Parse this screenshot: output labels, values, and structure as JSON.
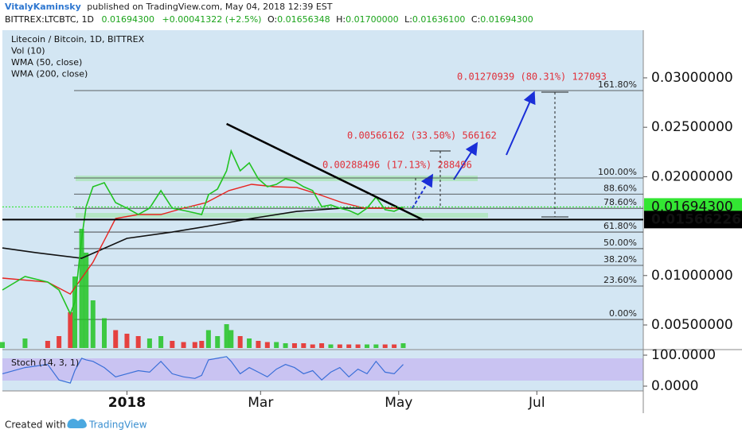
{
  "header": {
    "author": "VitalyKaminsky",
    "published": "published on TradingView.com, May 04, 2018 12:39 EST",
    "symbol": "BITTREX:LTCBTC, 1D",
    "last": "0.01694300",
    "change": "+0.00041322 (+2.5%)",
    "o_label": "O:",
    "open": "0.01656348",
    "h_label": "H:",
    "high": "0.01700000",
    "l_label": "L:",
    "low": "0.01636100",
    "c_label": "C:",
    "close": "0.01694300"
  },
  "chart_data": {
    "type": "line",
    "legend": [
      "Litecoin / Bitcoin, 1D, BITTREX",
      "Vol (10)",
      "WMA (50, close)",
      "WMA (200, close)"
    ],
    "x": [
      -55,
      -45,
      -35,
      -30,
      -25,
      -23,
      -20,
      -18,
      -15,
      -10,
      -5,
      0,
      5,
      10,
      15,
      20,
      25,
      30,
      33,
      36,
      40,
      44,
      46,
      50,
      54,
      58,
      62,
      66,
      70,
      74,
      78,
      82,
      86,
      90,
      94,
      98,
      102,
      106,
      110,
      114,
      118,
      122
    ],
    "series": [
      {
        "name": "Litecoin / Bitcoin, 1D, BITTREX",
        "color": "#22c322",
        "values": [
          0.00854,
          0.0099,
          0.00934,
          0.00854,
          0.00613,
          0.00733,
          0.01376,
          0.01698,
          0.01899,
          0.01939,
          0.01738,
          0.01682,
          0.01617,
          0.01682,
          0.01859,
          0.01682,
          0.01658,
          0.01633,
          0.01617,
          0.01818,
          0.01875,
          0.02059,
          0.0226,
          0.02059,
          0.0214,
          0.01979,
          0.01899,
          0.01923,
          0.01979,
          0.01955,
          0.01899,
          0.01859,
          0.01698,
          0.01714,
          0.01682,
          0.01658,
          0.01617,
          0.01682,
          0.01794,
          0.01666,
          0.0165,
          0.01694
        ]
      }
    ],
    "wma50": {
      "name": "WMA (50, close)",
      "color": "#e8231f",
      "x": [
        -55,
        -35,
        -25,
        -15,
        -5,
        5,
        15,
        25,
        35,
        45,
        55,
        65,
        75,
        85,
        95,
        105,
        115,
        122
      ],
      "values": [
        0.00974,
        0.00934,
        0.00813,
        0.01135,
        0.01577,
        0.01617,
        0.01617,
        0.01682,
        0.01738,
        0.01859,
        0.01923,
        0.01899,
        0.01891,
        0.01818,
        0.01738,
        0.01682,
        0.01682,
        0.01682
      ]
    },
    "wma200": {
      "name": "WMA (200, close)",
      "color": "#111111",
      "x": [
        -55,
        -40,
        -20,
        0,
        20,
        35,
        55,
        75,
        95,
        122
      ],
      "values": [
        0.01279,
        0.01231,
        0.01175,
        0.01376,
        0.0144,
        0.01497,
        0.01577,
        0.01649,
        0.01682,
        0.01682
      ]
    },
    "volume": {
      "name": "Vol (10)",
      "color": "#22c322",
      "vlim": [
        0,
        100
      ],
      "values": [
        5,
        8,
        6,
        10,
        30,
        60,
        100,
        80,
        40,
        25,
        15,
        12,
        10,
        8,
        10,
        6,
        5,
        5,
        6,
        15,
        10,
        20,
        15,
        10,
        8,
        6,
        5,
        5,
        4,
        4,
        4,
        3,
        4,
        3,
        3,
        3,
        3,
        3,
        3,
        3,
        3,
        4
      ]
    },
    "trendline": {
      "x": [
        44,
        131
      ],
      "values": [
        0.02534,
        0.01561
      ],
      "color": "#000000"
    },
    "fib": [
      {
        "label": "161.80%",
        "value": 0.02871
      },
      {
        "label": "100.00%",
        "value": 0.01987
      },
      {
        "label": "88.60%",
        "value": 0.01824
      },
      {
        "label": "78.60%",
        "value": 0.0168
      },
      {
        "label": "61.80%",
        "value": 0.0144
      },
      {
        "label": "50.00%",
        "value": 0.01272
      },
      {
        "label": "38.20%",
        "value": 0.01103
      },
      {
        "label": "23.60%",
        "value": 0.00894
      },
      {
        "label": "0.00%",
        "value": 0.00556
      }
    ],
    "annotations": [
      "0.00288496 (17.13%) 288496",
      "0.00566162 (33.50%) 566162",
      "0.01270939 (80.31%) 127093"
    ],
    "price_markers": [
      {
        "value": 0.016943,
        "label": "0.01694300",
        "color": "#33e633"
      },
      {
        "value": 0.01566226,
        "label": "0.01566226",
        "color": "#000000"
      }
    ],
    "xlim": [
      -55,
      228
    ],
    "ylim": [
      0.00267,
      0.03482
    ],
    "xticks": [
      {
        "value": 0,
        "label": "2018"
      },
      {
        "value": 59,
        "label": "Mar"
      },
      {
        "value": 120,
        "label": "May"
      },
      {
        "value": 181,
        "label": "Jul"
      }
    ],
    "yticks": [
      {
        "value": 0.005,
        "label": "0.00500000"
      },
      {
        "value": 0.01,
        "label": "0.01000000"
      },
      {
        "value": 0.02,
        "label": "0.02000000"
      },
      {
        "value": 0.025,
        "label": "0.02500000"
      },
      {
        "value": 0.03,
        "label": "0.03000000"
      }
    ],
    "stoch": {
      "name": "Stoch (14, 3, 1)",
      "color": "#3a6fd8",
      "slim": [
        0,
        100
      ],
      "sticks": [
        {
          "value": 100,
          "label": "100.0000"
        },
        {
          "value": 0,
          "label": "0.0000"
        }
      ],
      "values": [
        40,
        60,
        70,
        20,
        10,
        50,
        90,
        85,
        80,
        60,
        30,
        40,
        50,
        45,
        80,
        40,
        30,
        25,
        35,
        85,
        90,
        95,
        80,
        40,
        60,
        45,
        30,
        55,
        70,
        60,
        40,
        50,
        20,
        45,
        60,
        30,
        55,
        40,
        80,
        45,
        40,
        70
      ]
    }
  },
  "footer": {
    "created": "Created with",
    "brand": "TradingView"
  }
}
